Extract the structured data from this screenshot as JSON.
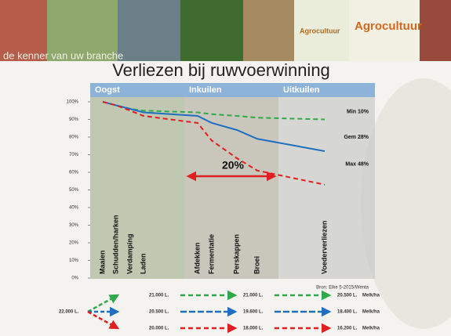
{
  "header": {
    "tagline": "de kenner van uw branche",
    "logo": "Agrocultuur",
    "logo_small": "Agrocultuur"
  },
  "chart_data": {
    "type": "line",
    "title": "Verliezen bij ruwvoerwinning",
    "phases": [
      "Oogst",
      "Inkuilen",
      "Uitkuilen"
    ],
    "categories": [
      "Maaien",
      "Schudden/harken",
      "Verdamping",
      "Laden",
      "Afdekken",
      "Fermentatie",
      "Perskappen",
      "Broei",
      "Voederverliezen"
    ],
    "series": [
      {
        "name": "Min 10%",
        "color": "#2eaa4a",
        "dashed": true,
        "values": [
          100,
          98,
          96,
          95,
          94,
          93,
          92,
          91,
          90
        ],
        "totals": [
          "21.000 L.",
          "21.000 L.",
          "20.500 L."
        ]
      },
      {
        "name": "Gem 28%",
        "color": "#1f6fc0",
        "dashed": false,
        "values": [
          100,
          98,
          96,
          94,
          92,
          88,
          84,
          79,
          72
        ],
        "totals": [
          "20.500 L.",
          "19.600 L.",
          "18.400 L."
        ]
      },
      {
        "name": "Max 48%",
        "color": "#e02020",
        "dashed": true,
        "values": [
          100,
          98,
          95,
          92,
          88,
          78,
          68,
          61,
          53
        ],
        "totals": [
          "20.000 L.",
          "18.000 L.",
          "16.200 L."
        ]
      }
    ],
    "ylim": [
      0,
      100
    ],
    "yticks": [
      {
        "value": 0,
        "label": "0%"
      },
      {
        "value": 10,
        "label": "10%"
      },
      {
        "value": 20,
        "label": "20%"
      },
      {
        "value": 30,
        "label": "30%"
      },
      {
        "value": 40,
        "label": "40%"
      },
      {
        "value": 50,
        "label": "50%"
      },
      {
        "value": 60,
        "label": "60%"
      },
      {
        "value": 70,
        "label": "70%"
      },
      {
        "value": 80,
        "label": "80%"
      },
      {
        "value": 90,
        "label": "90%"
      },
      {
        "value": 100,
        "label": "100%"
      }
    ],
    "annotation": "20%",
    "source": "Bron: Elke 5-2015/Wenta",
    "start_total": "22.000 L.",
    "unit": "Melk/ha"
  }
}
